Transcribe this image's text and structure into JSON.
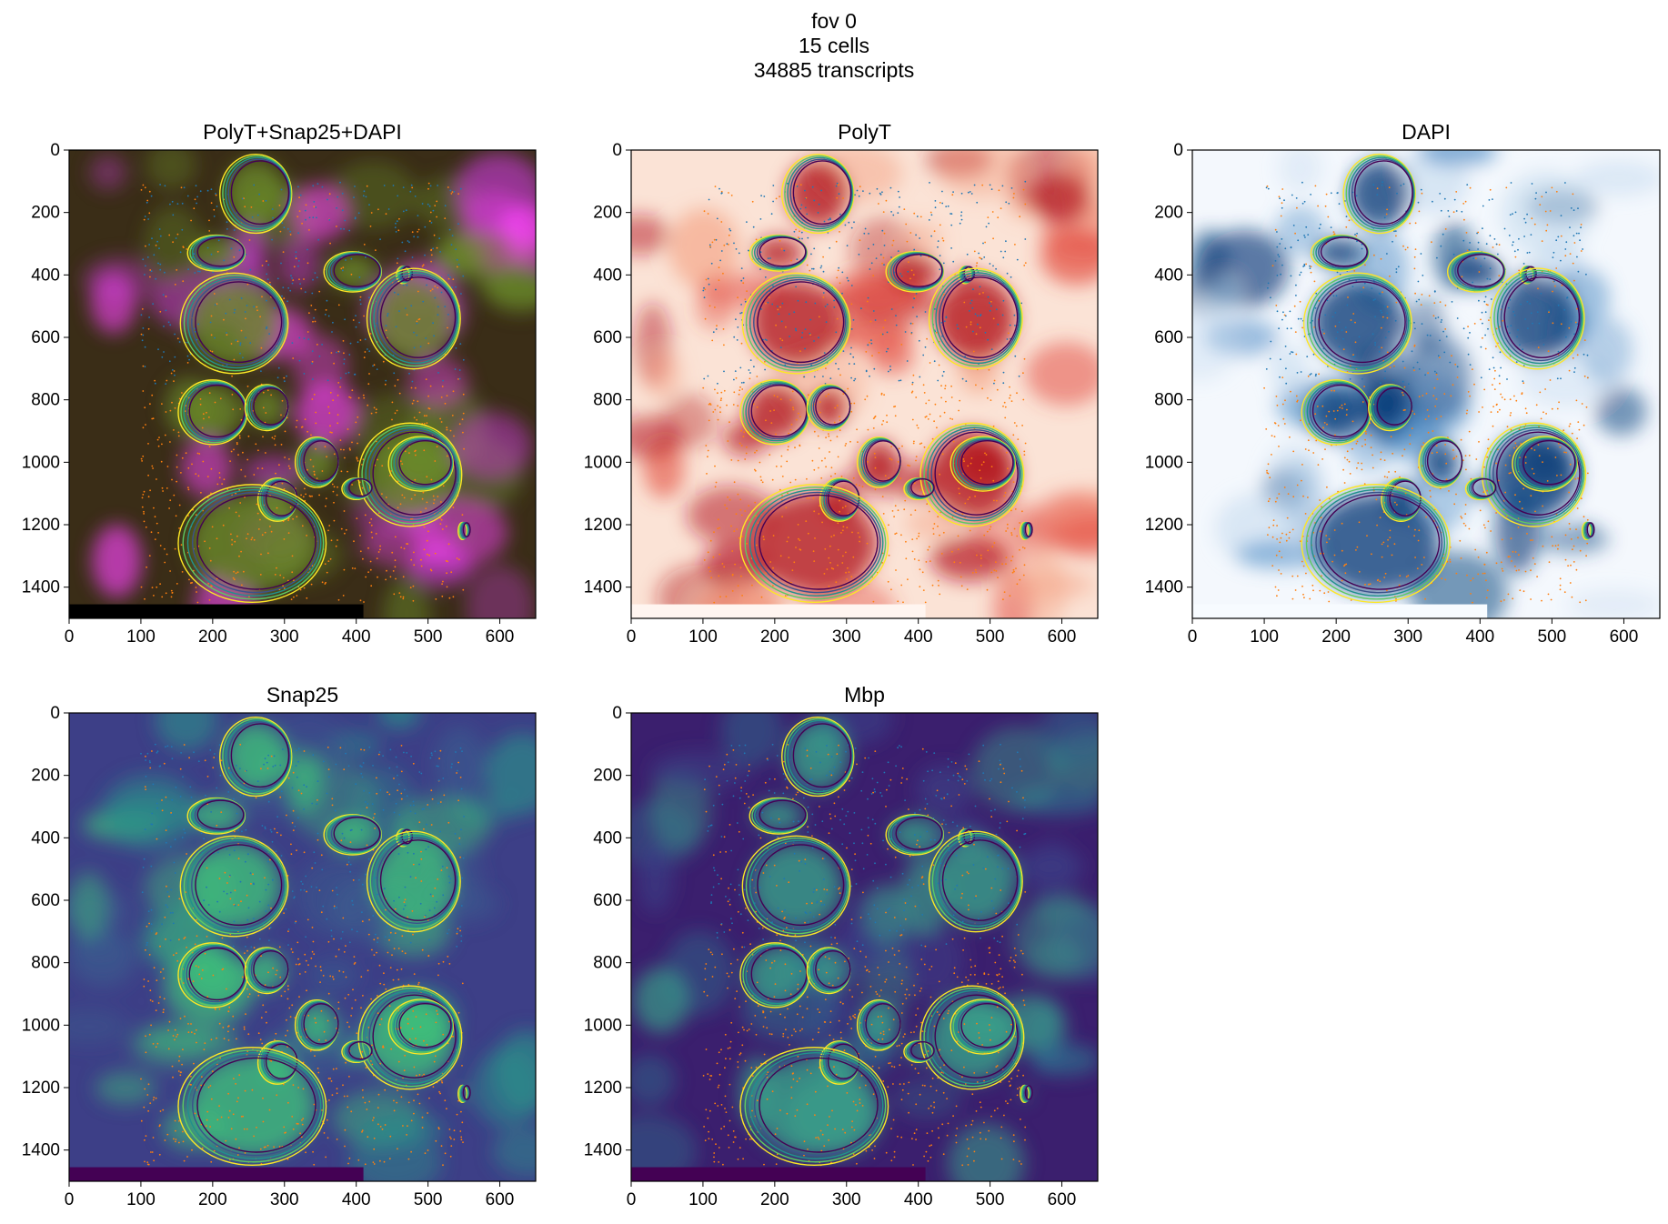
{
  "figure": {
    "title_lines": [
      "fov 0",
      "15 cells",
      "34885 transcripts"
    ]
  },
  "chart_data": [
    {
      "type": "image",
      "title": "PolyT+Snap25+DAPI",
      "colormap": "rgb-composite",
      "palette": [
        "#3a2d17",
        "#c83ad6",
        "#ff44ff",
        "#6a8a2a"
      ],
      "xlim": [
        0,
        650
      ],
      "ylim": [
        1500,
        0
      ],
      "xticks": [
        0,
        100,
        200,
        300,
        400,
        500,
        600
      ],
      "yticks": [
        0,
        200,
        400,
        600,
        800,
        1000,
        1200,
        1400
      ],
      "scale_bar": {
        "x": [
          0,
          410
        ],
        "color": "#000000"
      }
    },
    {
      "type": "image",
      "title": "PolyT",
      "colormap": "Reds",
      "palette": [
        "#fbe3d6",
        "#f4a486",
        "#e2473a",
        "#b3151f"
      ],
      "xlim": [
        0,
        650
      ],
      "ylim": [
        1500,
        0
      ],
      "xticks": [
        0,
        100,
        200,
        300,
        400,
        500,
        600
      ],
      "yticks": [
        0,
        200,
        400,
        600,
        800,
        1000,
        1200,
        1400
      ],
      "scale_bar": {
        "x": [
          0,
          410
        ],
        "color": "#fff5f0"
      }
    },
    {
      "type": "image",
      "title": "DAPI",
      "colormap": "Blues",
      "palette": [
        "#f4f8fd",
        "#c6dbef",
        "#4b8ac4",
        "#0b3e7a"
      ],
      "xlim": [
        0,
        650
      ],
      "ylim": [
        1500,
        0
      ],
      "xticks": [
        0,
        100,
        200,
        300,
        400,
        500,
        600
      ],
      "yticks": [
        0,
        200,
        400,
        600,
        800,
        1000,
        1200,
        1400
      ],
      "scale_bar": {
        "x": [
          0,
          410
        ],
        "color": "#f7fbff"
      }
    },
    {
      "type": "image",
      "title": "Snap25",
      "colormap": "viridis",
      "palette": [
        "#3d3f87",
        "#3b5a8e",
        "#2a8f8a",
        "#3fbf7a"
      ],
      "xlim": [
        0,
        650
      ],
      "ylim": [
        1500,
        0
      ],
      "xticks": [
        0,
        100,
        200,
        300,
        400,
        500,
        600
      ],
      "yticks": [
        0,
        200,
        400,
        600,
        800,
        1000,
        1200,
        1400
      ],
      "scale_bar": {
        "x": [
          0,
          410
        ],
        "color": "#440154"
      }
    },
    {
      "type": "image",
      "title": "Mbp",
      "colormap": "viridis",
      "palette": [
        "#3b1f6e",
        "#3b3f86",
        "#2f6f8e",
        "#3aa08a"
      ],
      "xlim": [
        0,
        650
      ],
      "ylim": [
        1500,
        0
      ],
      "xticks": [
        0,
        100,
        200,
        300,
        400,
        500,
        600
      ],
      "yticks": [
        0,
        200,
        400,
        600,
        800,
        1000,
        1200,
        1400
      ],
      "scale_bar": {
        "x": [
          0,
          410
        ],
        "color": "#440154"
      }
    }
  ],
  "overlay": {
    "transcript_colors": [
      "#1f77b4",
      "#ff7f0e"
    ],
    "transcript_region": {
      "x": [
        100,
        550
      ],
      "y": [
        100,
        1450
      ]
    },
    "cells": [
      {
        "cx": 260,
        "cy": 140,
        "rx": 50,
        "ry": 55
      },
      {
        "cx": 205,
        "cy": 330,
        "rx": 40,
        "ry": 25
      },
      {
        "cx": 395,
        "cy": 390,
        "rx": 40,
        "ry": 28
      },
      {
        "cx": 465,
        "cy": 400,
        "rx": 9,
        "ry": 12
      },
      {
        "cx": 230,
        "cy": 555,
        "rx": 75,
        "ry": 70
      },
      {
        "cx": 480,
        "cy": 540,
        "rx": 65,
        "ry": 70
      },
      {
        "cx": 200,
        "cy": 840,
        "rx": 48,
        "ry": 45
      },
      {
        "cx": 275,
        "cy": 825,
        "rx": 30,
        "ry": 32
      },
      {
        "cx": 345,
        "cy": 1000,
        "rx": 30,
        "ry": 35
      },
      {
        "cx": 475,
        "cy": 1040,
        "rx": 72,
        "ry": 72
      },
      {
        "cx": 290,
        "cy": 1120,
        "rx": 27,
        "ry": 30
      },
      {
        "cx": 400,
        "cy": 1085,
        "rx": 20,
        "ry": 15
      },
      {
        "cx": 255,
        "cy": 1260,
        "rx": 103,
        "ry": 82
      },
      {
        "cx": 548,
        "cy": 1220,
        "rx": 6,
        "ry": 12
      },
      {
        "cx": 490,
        "cy": 1005,
        "rx": 45,
        "ry": 38
      }
    ]
  }
}
